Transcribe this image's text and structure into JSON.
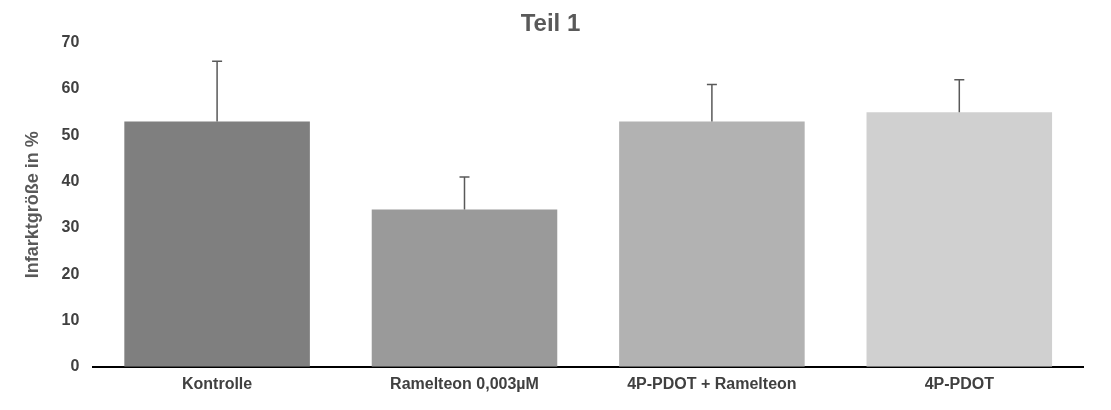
{
  "chart_data": {
    "type": "bar",
    "title": "Teil 1",
    "ylabel": "Infarktgröße in %",
    "categories": [
      "Kontrolle",
      "Ramelteon 0,003µM",
      "4P-PDOT + Ramelteon",
      "4P-PDOT"
    ],
    "values": [
      53,
      34,
      53,
      55
    ],
    "colors": [
      "#7f7f7f",
      "#9a9a9a",
      "#b2b2b2",
      "#d0d0d0"
    ],
    "errors": [
      13,
      7,
      8,
      7
    ],
    "ylim": [
      0,
      70
    ],
    "yticks": [
      0,
      10,
      20,
      30,
      40,
      50,
      60,
      70
    ],
    "grid": false,
    "legend": false
  }
}
